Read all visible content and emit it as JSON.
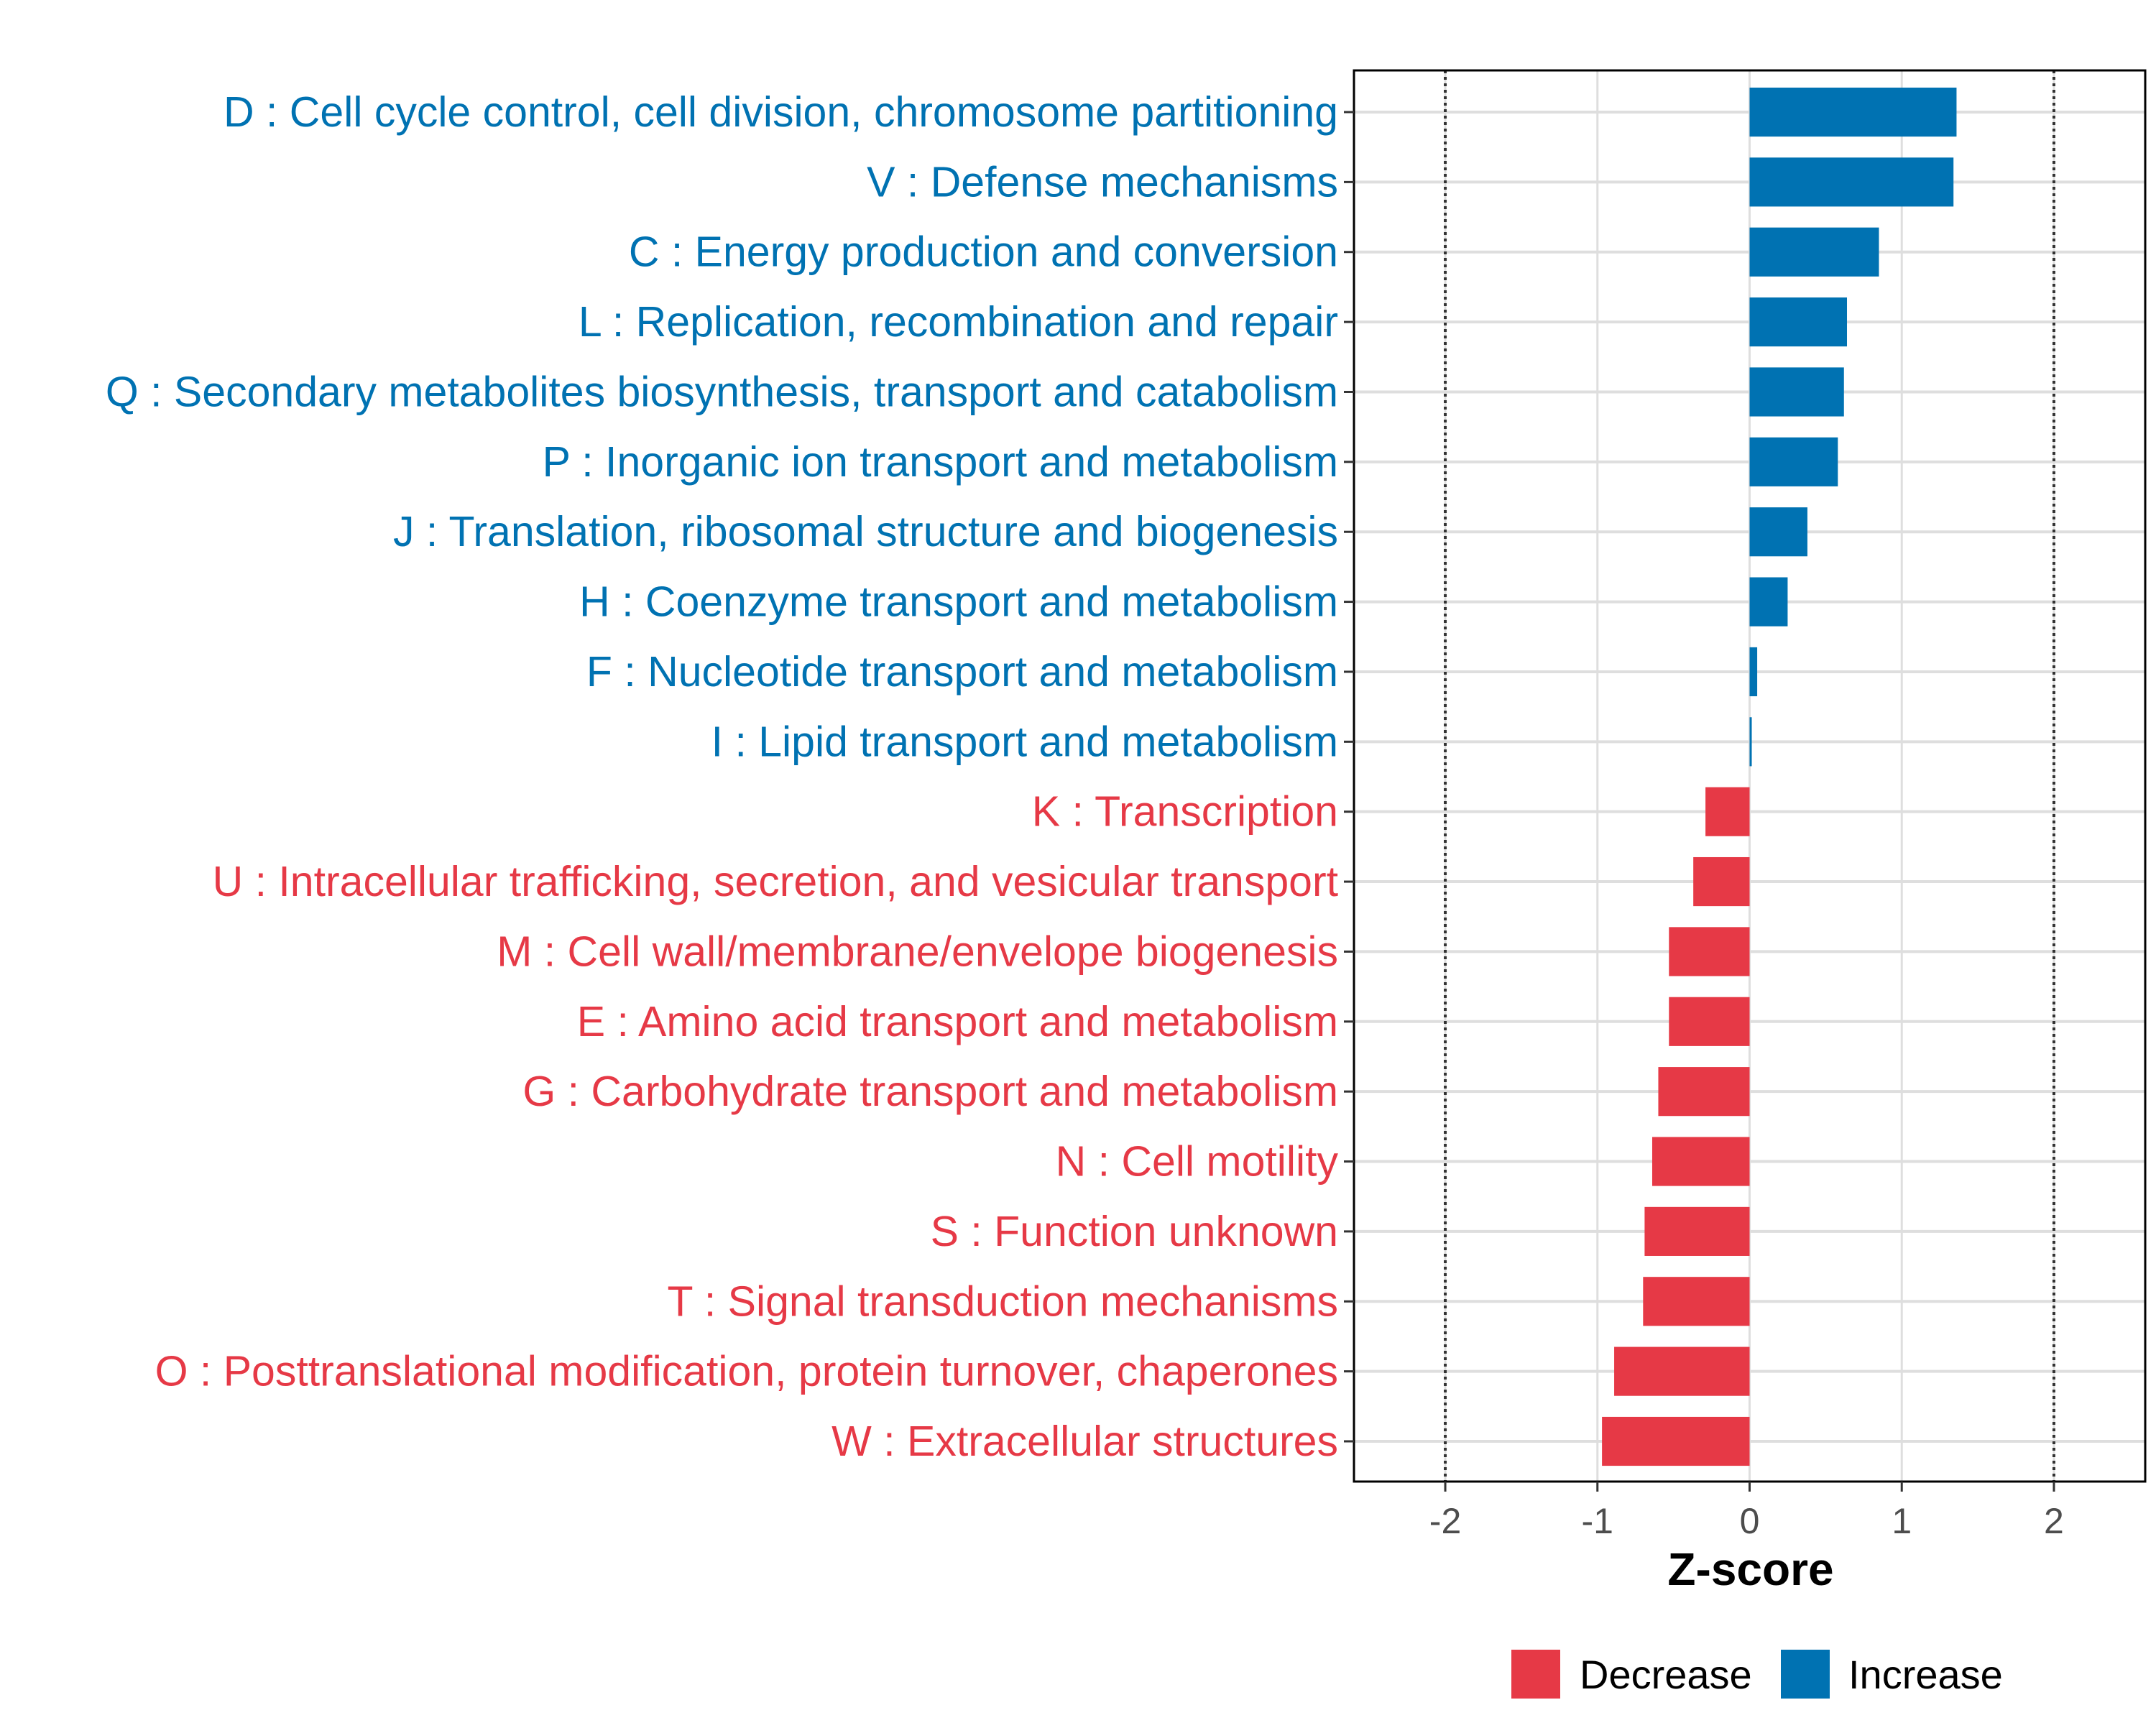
{
  "chart_data": {
    "type": "bar",
    "orientation": "horizontal",
    "xlabel": "Z-score",
    "xlim": [
      -2.6,
      2.6
    ],
    "xticks": [
      -2,
      -1,
      0,
      1,
      2
    ],
    "xtick_labels": [
      "-2",
      "-1",
      "0",
      "1",
      "2"
    ],
    "reference_lines": [
      -2,
      2
    ],
    "grid": true,
    "legend_position": "bottom-right",
    "colors": {
      "Increase": "#0072B2",
      "Decrease": "#E63946"
    },
    "legend": [
      {
        "name": "Decrease",
        "color": "#E63946"
      },
      {
        "name": "Increase",
        "color": "#0072B2"
      }
    ],
    "categories": [
      "D : Cell cycle control, cell division, chromosome partitioning",
      "V : Defense mechanisms",
      "C : Energy production and conversion",
      "L : Replication, recombination and repair",
      "Q : Secondary metabolites biosynthesis, transport and catabolism",
      "P : Inorganic ion transport and metabolism",
      "J : Translation, ribosomal structure and biogenesis",
      "H : Coenzyme transport and metabolism",
      "F : Nucleotide transport and metabolism",
      "I : Lipid transport and metabolism",
      "K : Transcription",
      "U : Intracellular trafficking, secretion, and vesicular transport",
      "M : Cell wall/membrane/envelope biogenesis",
      "E : Amino acid transport and metabolism",
      "G : Carbohydrate transport and metabolism",
      "N : Cell motility",
      "S : Function unknown",
      "T : Signal transduction mechanisms",
      "O : Posttranslational modification, protein turnover, chaperones",
      "W : Extracellular structures"
    ],
    "values": [
      1.36,
      1.34,
      0.85,
      0.64,
      0.62,
      0.58,
      0.38,
      0.25,
      0.05,
      0.01,
      -0.29,
      -0.37,
      -0.53,
      -0.53,
      -0.6,
      -0.64,
      -0.69,
      -0.7,
      -0.89,
      -0.97
    ],
    "groups": [
      "Increase",
      "Increase",
      "Increase",
      "Increase",
      "Increase",
      "Increase",
      "Increase",
      "Increase",
      "Increase",
      "Increase",
      "Decrease",
      "Decrease",
      "Decrease",
      "Decrease",
      "Decrease",
      "Decrease",
      "Decrease",
      "Decrease",
      "Decrease",
      "Decrease"
    ]
  }
}
